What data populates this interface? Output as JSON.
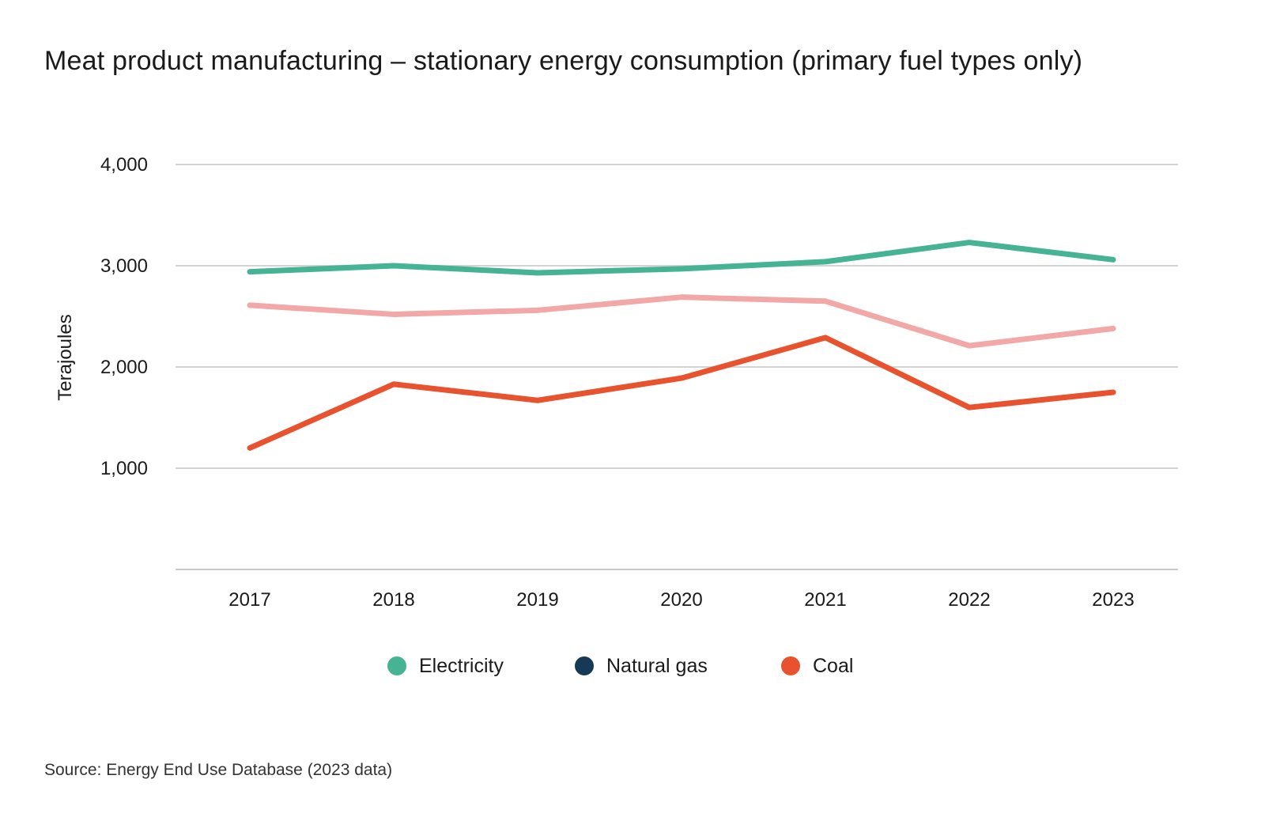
{
  "chart_data": {
    "type": "line",
    "title": "Meat product manufacturing – stationary energy consumption (primary fuel types only)",
    "xlabel": "",
    "ylabel": "Terajoules",
    "x": [
      "2017",
      "2018",
      "2019",
      "2020",
      "2021",
      "2022",
      "2023"
    ],
    "ylim": [
      0,
      4000
    ],
    "yticks": [
      1000,
      2000,
      3000,
      4000
    ],
    "ytick_labels": [
      "1,000",
      "2,000",
      "3,000",
      "4,000"
    ],
    "grid": true,
    "legend_position": "bottom-center",
    "series": [
      {
        "name": "Electricity",
        "color": "#45b394",
        "values": [
          2940,
          3000,
          2930,
          2970,
          3040,
          3230,
          3060
        ]
      },
      {
        "name": "Natural gas",
        "color": "#f1a8a6",
        "legend_color": "#163a55",
        "values": [
          2610,
          2520,
          2560,
          2690,
          2650,
          2210,
          2380
        ]
      },
      {
        "name": "Coal",
        "color": "#e8522e",
        "values": [
          1200,
          1830,
          1670,
          1890,
          2290,
          1600,
          1750
        ]
      }
    ],
    "source": "Source: Energy End Use Database (2023 data)"
  }
}
